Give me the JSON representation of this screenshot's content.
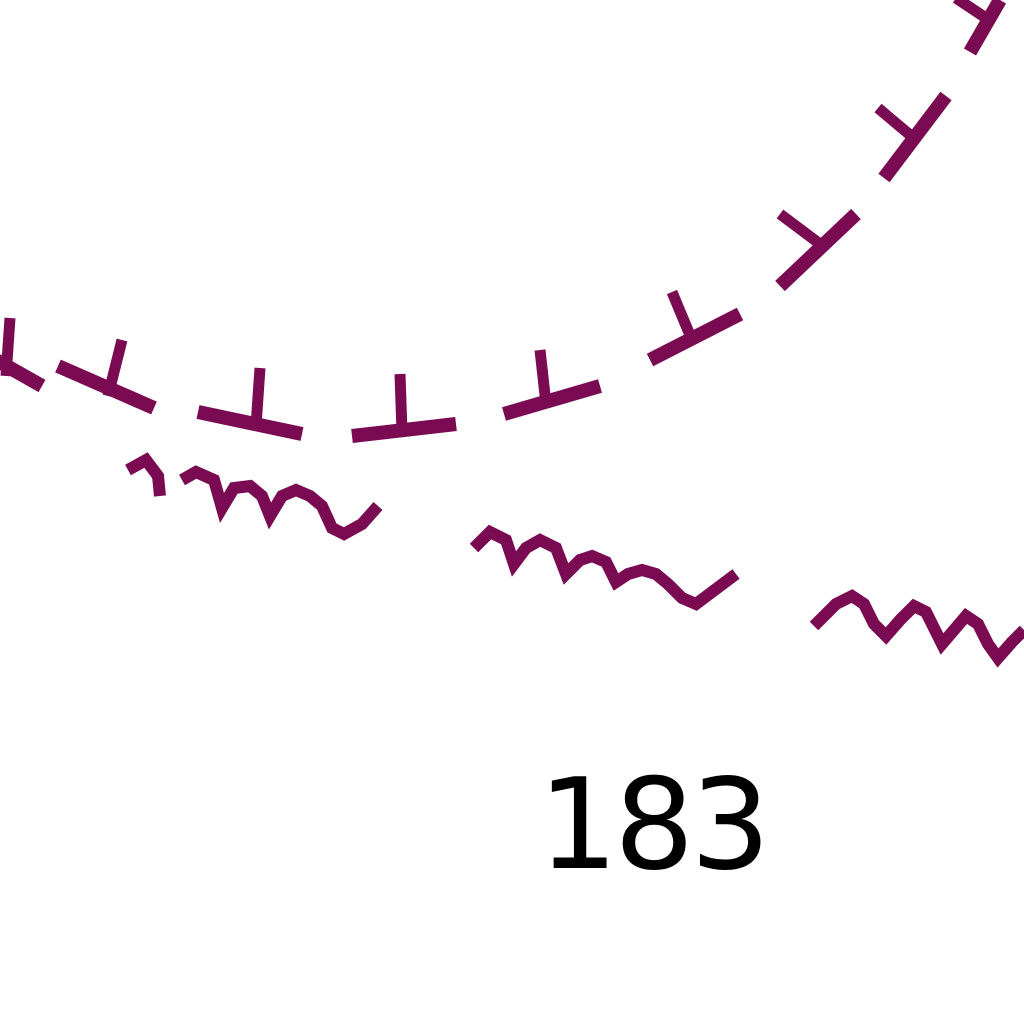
{
  "map": {
    "spot_height": "183",
    "colors": {
      "symbol": "#7a0a52",
      "label": "#000000",
      "background": "#ffffff"
    },
    "symbols": {
      "embankment_ticks": "tick-symbol",
      "marsh_tufts": "wave-symbol"
    }
  }
}
